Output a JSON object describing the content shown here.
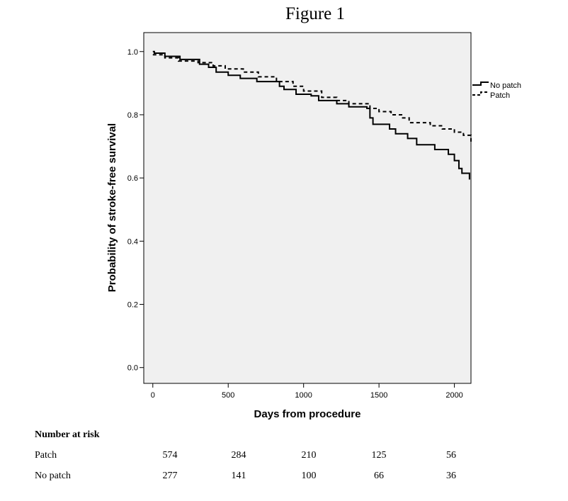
{
  "figure_title": "Figure 1",
  "chart_data": {
    "type": "line",
    "step": true,
    "xlabel": "Days from procedure",
    "ylabel": "Probability of stroke-free survival",
    "xlim": [
      -60,
      2110
    ],
    "ylim": [
      -0.05,
      1.06
    ],
    "xticks": [
      0,
      500,
      1000,
      1500,
      2000
    ],
    "yticks": [
      0.0,
      0.2,
      0.4,
      0.6,
      0.8,
      1.0
    ],
    "ytick_labels": [
      "0.0",
      "0.2",
      "0.4",
      "0.6",
      "0.8",
      "1.0"
    ],
    "grid": false,
    "legend_position": "right",
    "plot_background": "#f0f0f0",
    "series": [
      {
        "name": "No patch",
        "style": "solid",
        "color": "#000000",
        "points": [
          [
            0,
            1.0
          ],
          [
            10,
            0.995
          ],
          [
            80,
            0.985
          ],
          [
            180,
            0.975
          ],
          [
            310,
            0.96
          ],
          [
            370,
            0.95
          ],
          [
            420,
            0.935
          ],
          [
            500,
            0.925
          ],
          [
            580,
            0.915
          ],
          [
            690,
            0.905
          ],
          [
            840,
            0.89
          ],
          [
            870,
            0.88
          ],
          [
            950,
            0.865
          ],
          [
            1050,
            0.86
          ],
          [
            1100,
            0.845
          ],
          [
            1220,
            0.835
          ],
          [
            1300,
            0.825
          ],
          [
            1420,
            0.82
          ],
          [
            1440,
            0.79
          ],
          [
            1460,
            0.77
          ],
          [
            1570,
            0.755
          ],
          [
            1610,
            0.74
          ],
          [
            1690,
            0.725
          ],
          [
            1750,
            0.705
          ],
          [
            1870,
            0.69
          ],
          [
            1960,
            0.675
          ],
          [
            2000,
            0.655
          ],
          [
            2030,
            0.63
          ],
          [
            2050,
            0.615
          ],
          [
            2100,
            0.595
          ]
        ]
      },
      {
        "name": "Patch",
        "style": "dashed",
        "color": "#000000",
        "points": [
          [
            0,
            0.99
          ],
          [
            80,
            0.98
          ],
          [
            170,
            0.97
          ],
          [
            300,
            0.965
          ],
          [
            400,
            0.955
          ],
          [
            480,
            0.945
          ],
          [
            600,
            0.935
          ],
          [
            700,
            0.92
          ],
          [
            820,
            0.905
          ],
          [
            930,
            0.89
          ],
          [
            1000,
            0.875
          ],
          [
            1120,
            0.855
          ],
          [
            1220,
            0.845
          ],
          [
            1300,
            0.835
          ],
          [
            1440,
            0.82
          ],
          [
            1500,
            0.81
          ],
          [
            1580,
            0.8
          ],
          [
            1650,
            0.79
          ],
          [
            1700,
            0.775
          ],
          [
            1840,
            0.765
          ],
          [
            1920,
            0.755
          ],
          [
            2000,
            0.745
          ],
          [
            2060,
            0.735
          ],
          [
            2110,
            0.715
          ]
        ]
      }
    ]
  },
  "risk_table": {
    "header": "Number at risk",
    "rows": [
      {
        "label": "Patch",
        "values": [
          "574",
          "284",
          "210",
          "125",
          "56"
        ]
      },
      {
        "label": "No patch",
        "values": [
          "277",
          "141",
          "100",
          "66",
          "36"
        ]
      }
    ]
  }
}
